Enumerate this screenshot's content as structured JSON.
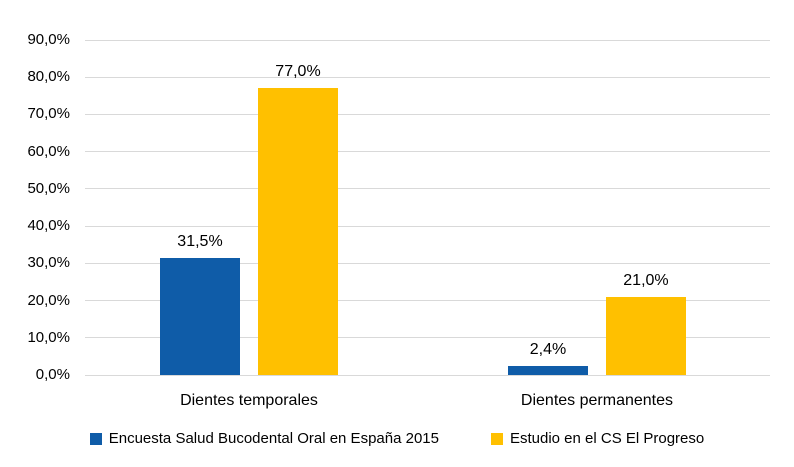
{
  "chart_data": {
    "type": "bar",
    "title": "",
    "categories": [
      "Dientes temporales",
      "Dientes permanentes"
    ],
    "series": [
      {
        "name": "Encuesta Salud Bucodental Oral en España 2015",
        "color": "#0F5CA8",
        "values": [
          31.5,
          2.4
        ],
        "labels": [
          "31,5%",
          "2,4%"
        ]
      },
      {
        "name": "Estudio en el CS El Progreso",
        "color": "#FFC000",
        "values": [
          77.0,
          21.0
        ],
        "labels": [
          "77,0%",
          "21,0%"
        ]
      }
    ],
    "y_axis": {
      "min": 0,
      "max": 90,
      "step": 10,
      "tick_labels": [
        "0,0%",
        "10,0%",
        "20,0%",
        "30,0%",
        "40,0%",
        "50,0%",
        "60,0%",
        "70,0%",
        "80,0%",
        "90,0%"
      ]
    },
    "xlabel": "",
    "ylabel": "",
    "grid": true,
    "gridline_color": "#D9D9D9",
    "label_color": "#000000",
    "background": "#FFFFFF",
    "legend_position": "bottom"
  }
}
